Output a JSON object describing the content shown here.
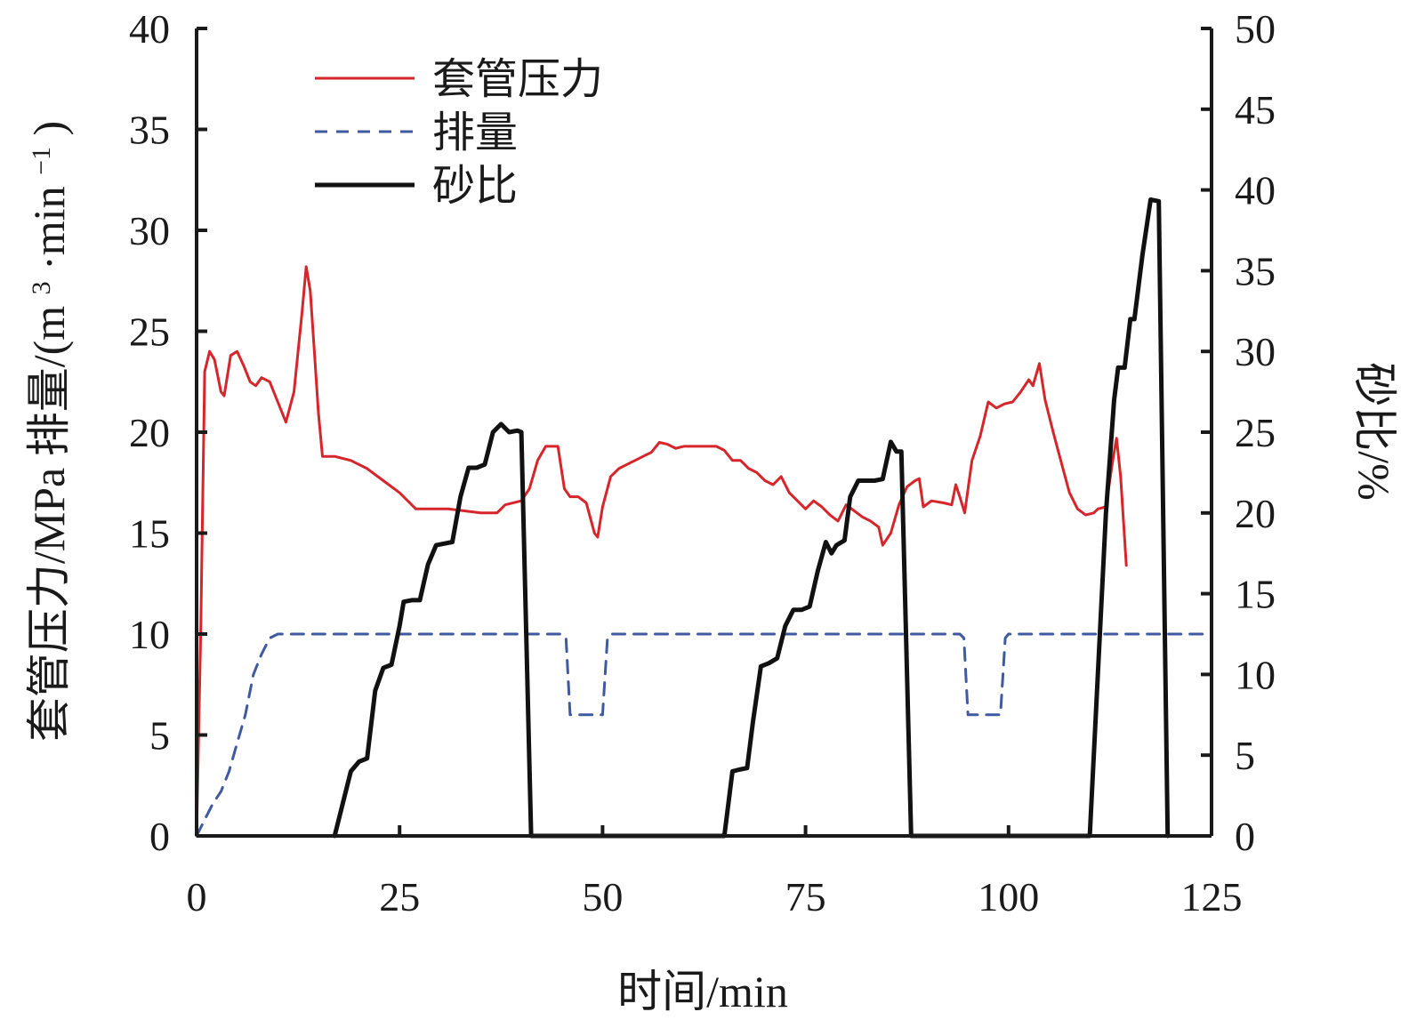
{
  "chart_data": {
    "type": "line",
    "x_axis": {
      "label": "时间/min",
      "range": [
        0,
        125
      ],
      "ticks": [
        0,
        25,
        50,
        75,
        100,
        125
      ]
    },
    "y_left": {
      "label_pressure": "套管压力/MPa",
      "label_rate_prefix": "排量/(m",
      "label_rate_sup1": "3",
      "label_rate_mid": "·min",
      "label_rate_sup2": "−1",
      "label_rate_suffix": ")",
      "range": [
        0,
        40
      ],
      "ticks": [
        0,
        5,
        10,
        15,
        20,
        25,
        30,
        35,
        40
      ]
    },
    "y_right": {
      "label": "砂比/%",
      "range": [
        0,
        50
      ],
      "ticks": [
        0,
        5,
        10,
        15,
        20,
        25,
        30,
        35,
        40,
        45,
        50
      ]
    },
    "legend": {
      "position": "top-left",
      "items": [
        {
          "label": "套管压力",
          "series": "pressure"
        },
        {
          "label": "排量",
          "series": "rate"
        },
        {
          "label": "砂比",
          "series": "sand"
        }
      ]
    },
    "series": [
      {
        "key": "pressure",
        "name": "套管压力",
        "axis": "left",
        "color": "#d6252b",
        "style": "solid",
        "points": [
          [
            0,
            0
          ],
          [
            0.5,
            10
          ],
          [
            1,
            23
          ],
          [
            1.6,
            24
          ],
          [
            2.2,
            23.6
          ],
          [
            3,
            22
          ],
          [
            3.4,
            21.8
          ],
          [
            4.2,
            23.8
          ],
          [
            5,
            24
          ],
          [
            5.8,
            23.3
          ],
          [
            6.6,
            22.5
          ],
          [
            7.3,
            22.3
          ],
          [
            8,
            22.7
          ],
          [
            9,
            22.5
          ],
          [
            10,
            21.5
          ],
          [
            11,
            20.5
          ],
          [
            12,
            22
          ],
          [
            13,
            26
          ],
          [
            13.5,
            28.2
          ],
          [
            14,
            27
          ],
          [
            14.5,
            24
          ],
          [
            15,
            21
          ],
          [
            15.5,
            18.8
          ],
          [
            17,
            18.8
          ],
          [
            19,
            18.6
          ],
          [
            21,
            18.2
          ],
          [
            23,
            17.6
          ],
          [
            25,
            17
          ],
          [
            27,
            16.2
          ],
          [
            29,
            16.2
          ],
          [
            31,
            16.2
          ],
          [
            33,
            16.1
          ],
          [
            35,
            16
          ],
          [
            37,
            16
          ],
          [
            38,
            16.4
          ],
          [
            40,
            16.6
          ],
          [
            41,
            17.2
          ],
          [
            42,
            18.6
          ],
          [
            43,
            19.3
          ],
          [
            44.5,
            19.3
          ],
          [
            45.3,
            17.2
          ],
          [
            46,
            16.8
          ],
          [
            47,
            16.8
          ],
          [
            48,
            16.5
          ],
          [
            49,
            15
          ],
          [
            49.4,
            14.8
          ],
          [
            50,
            16.3
          ],
          [
            51,
            17.8
          ],
          [
            52,
            18.2
          ],
          [
            53,
            18.4
          ],
          [
            54,
            18.6
          ],
          [
            55,
            18.8
          ],
          [
            56,
            19
          ],
          [
            57,
            19.5
          ],
          [
            58,
            19.4
          ],
          [
            59,
            19.2
          ],
          [
            60,
            19.3
          ],
          [
            61,
            19.3
          ],
          [
            62,
            19.3
          ],
          [
            63,
            19.3
          ],
          [
            64,
            19.3
          ],
          [
            65,
            19.1
          ],
          [
            66,
            18.6
          ],
          [
            67,
            18.6
          ],
          [
            68,
            18.2
          ],
          [
            69,
            18
          ],
          [
            70,
            17.6
          ],
          [
            71,
            17.4
          ],
          [
            72,
            17.8
          ],
          [
            73,
            17
          ],
          [
            74,
            16.6
          ],
          [
            75,
            16.2
          ],
          [
            76,
            16.6
          ],
          [
            77,
            16.3
          ],
          [
            78,
            15.9
          ],
          [
            79,
            15.6
          ],
          [
            80,
            16.4
          ],
          [
            81,
            16.1
          ],
          [
            82,
            15.8
          ],
          [
            83,
            15.6
          ],
          [
            84,
            15.3
          ],
          [
            84.5,
            14.4
          ],
          [
            85.5,
            15
          ],
          [
            86.5,
            16.4
          ],
          [
            87.5,
            17.3
          ],
          [
            88.5,
            17.6
          ],
          [
            89,
            17.7
          ],
          [
            89.5,
            16.3
          ],
          [
            90.5,
            16.6
          ],
          [
            92,
            16.5
          ],
          [
            93,
            16.4
          ],
          [
            93.5,
            17.4
          ],
          [
            94,
            16.8
          ],
          [
            94.6,
            16
          ],
          [
            95.5,
            18.6
          ],
          [
            96.5,
            19.8
          ],
          [
            97.5,
            21.5
          ],
          [
            98.5,
            21.2
          ],
          [
            99.5,
            21.4
          ],
          [
            100.5,
            21.5
          ],
          [
            101.5,
            22
          ],
          [
            102.5,
            22.6
          ],
          [
            103,
            22.3
          ],
          [
            103.8,
            23.4
          ],
          [
            104.5,
            21.6
          ],
          [
            105.5,
            20
          ],
          [
            106.5,
            18.5
          ],
          [
            107.5,
            17
          ],
          [
            108.5,
            16.2
          ],
          [
            109.5,
            15.9
          ],
          [
            110.5,
            16
          ],
          [
            111,
            16.2
          ],
          [
            112,
            16.3
          ],
          [
            112.8,
            18.5
          ],
          [
            113.3,
            19.7
          ],
          [
            113.8,
            17.8
          ],
          [
            114.5,
            13.4
          ]
        ]
      },
      {
        "key": "rate",
        "name": "排量",
        "axis": "left",
        "color": "#3f5aa0",
        "style": "dashed",
        "points": [
          [
            0,
            0
          ],
          [
            1,
            0.8
          ],
          [
            2,
            1.6
          ],
          [
            3,
            2.2
          ],
          [
            4,
            3.2
          ],
          [
            5,
            4.6
          ],
          [
            6,
            6
          ],
          [
            7,
            8
          ],
          [
            8,
            9
          ],
          [
            9,
            9.8
          ],
          [
            10,
            10
          ],
          [
            45,
            10
          ],
          [
            45.5,
            9.8
          ],
          [
            46,
            6
          ],
          [
            50,
            6
          ],
          [
            50.6,
            9.8
          ],
          [
            51,
            10
          ],
          [
            94,
            10
          ],
          [
            94.5,
            9.8
          ],
          [
            95,
            6
          ],
          [
            99,
            6
          ],
          [
            99.6,
            9.8
          ],
          [
            100,
            10
          ],
          [
            124,
            10
          ]
        ]
      },
      {
        "key": "sand",
        "name": "砂比",
        "axis": "right",
        "color": "#111111",
        "style": "solid",
        "points": [
          [
            17,
            0
          ],
          [
            18,
            2
          ],
          [
            19,
            4
          ],
          [
            20,
            4.6
          ],
          [
            21,
            4.8
          ],
          [
            22,
            9
          ],
          [
            23,
            10.4
          ],
          [
            24,
            10.6
          ],
          [
            25,
            13
          ],
          [
            25.5,
            14.5
          ],
          [
            26.5,
            14.6
          ],
          [
            27.5,
            14.6
          ],
          [
            28.5,
            16.8
          ],
          [
            29.5,
            18
          ],
          [
            30.5,
            18.1
          ],
          [
            31.5,
            18.2
          ],
          [
            32.5,
            21
          ],
          [
            33.5,
            22.8
          ],
          [
            34.5,
            22.8
          ],
          [
            35.5,
            23
          ],
          [
            36.5,
            25
          ],
          [
            37.5,
            25.5
          ],
          [
            38.5,
            25
          ],
          [
            39.5,
            25.1
          ],
          [
            40,
            25
          ],
          [
            41.2,
            0
          ],
          [
            65,
            0
          ],
          [
            66,
            4
          ],
          [
            66.8,
            4.1
          ],
          [
            67.8,
            4.2
          ],
          [
            68.5,
            7
          ],
          [
            69.5,
            10.5
          ],
          [
            70.5,
            10.7
          ],
          [
            71.5,
            11
          ],
          [
            72.5,
            13
          ],
          [
            73.5,
            14
          ],
          [
            74.5,
            14
          ],
          [
            75.5,
            14.2
          ],
          [
            76.5,
            16.4
          ],
          [
            77.5,
            18.2
          ],
          [
            78.2,
            17.5
          ],
          [
            78.8,
            18
          ],
          [
            79.8,
            18.3
          ],
          [
            80.5,
            21
          ],
          [
            81.5,
            22
          ],
          [
            82.5,
            22
          ],
          [
            83.5,
            22
          ],
          [
            84.5,
            22.1
          ],
          [
            85.5,
            24.4
          ],
          [
            86.2,
            23.8
          ],
          [
            86.8,
            23.8
          ],
          [
            88,
            0
          ],
          [
            110,
            0
          ],
          [
            111,
            10
          ],
          [
            112,
            20
          ],
          [
            113,
            27
          ],
          [
            113.5,
            29
          ],
          [
            114.3,
            29
          ],
          [
            115,
            32
          ],
          [
            115.5,
            32
          ],
          [
            116.5,
            36
          ],
          [
            117.5,
            39.4
          ],
          [
            118.5,
            39.3
          ],
          [
            119.6,
            0
          ]
        ]
      }
    ]
  }
}
